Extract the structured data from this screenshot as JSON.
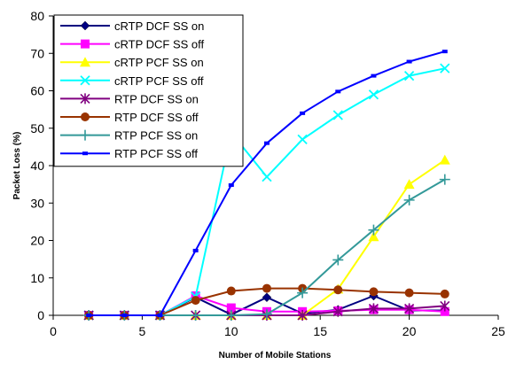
{
  "chart_data": {
    "type": "line",
    "xlabel": "Number of Mobile Stations",
    "ylabel": "Packet Loss (%)",
    "xlim": [
      0,
      25
    ],
    "ylim": [
      0,
      80
    ],
    "xticks": [
      0,
      5,
      10,
      15,
      20,
      25
    ],
    "yticks": [
      0,
      10,
      20,
      30,
      40,
      50,
      60,
      70,
      80
    ],
    "x": [
      2,
      4,
      6,
      8,
      10,
      12,
      14,
      16,
      18,
      20,
      22
    ],
    "grid": false,
    "legend_position": "top-left",
    "series": [
      {
        "name": "cRTP DCF SS on",
        "color": "#000080",
        "marker": "diamond",
        "values": [
          0,
          0,
          0,
          4.8,
          0.2,
          4.8,
          0.5,
          1.5,
          5.2,
          1.3,
          1.3
        ]
      },
      {
        "name": "cRTP DCF SS off",
        "color": "#ff00ff",
        "marker": "square",
        "values": [
          0,
          0,
          0,
          5.2,
          2.0,
          1.0,
          1.0,
          1.2,
          1.5,
          1.5,
          1.0
        ]
      },
      {
        "name": "cRTP PCF SS on",
        "color": "#ffff00",
        "marker": "triangle",
        "values": [
          0,
          0,
          0,
          0,
          0,
          0,
          0,
          7.0,
          21.0,
          35.0,
          41.5
        ]
      },
      {
        "name": "cRTP PCF SS off",
        "color": "#00ffff",
        "marker": "x",
        "values": [
          0,
          0,
          0,
          5.0,
          48.8,
          37.0,
          47.0,
          53.5,
          59.0,
          64.0,
          66.0
        ]
      },
      {
        "name": "RTP DCF SS on",
        "color": "#800080",
        "marker": "asterisk",
        "values": [
          0,
          0,
          0,
          0,
          0,
          0,
          0,
          1.0,
          1.8,
          1.8,
          2.5
        ]
      },
      {
        "name": "RTP DCF SS off",
        "color": "#993300",
        "marker": "circle",
        "values": [
          0,
          0,
          0,
          4.0,
          6.5,
          7.2,
          7.2,
          6.8,
          6.3,
          6.0,
          5.7
        ]
      },
      {
        "name": "RTP PCF SS on",
        "color": "#339999",
        "marker": "plus",
        "values": [
          0,
          0,
          0,
          0,
          0,
          0.3,
          6.0,
          14.8,
          22.8,
          30.8,
          36.3
        ]
      },
      {
        "name": "RTP PCF SS off",
        "color": "#0000ff",
        "marker": "dash",
        "values": [
          0,
          0,
          0,
          17.3,
          34.8,
          46.0,
          54.0,
          59.8,
          64.0,
          67.8,
          70.5
        ]
      }
    ]
  }
}
